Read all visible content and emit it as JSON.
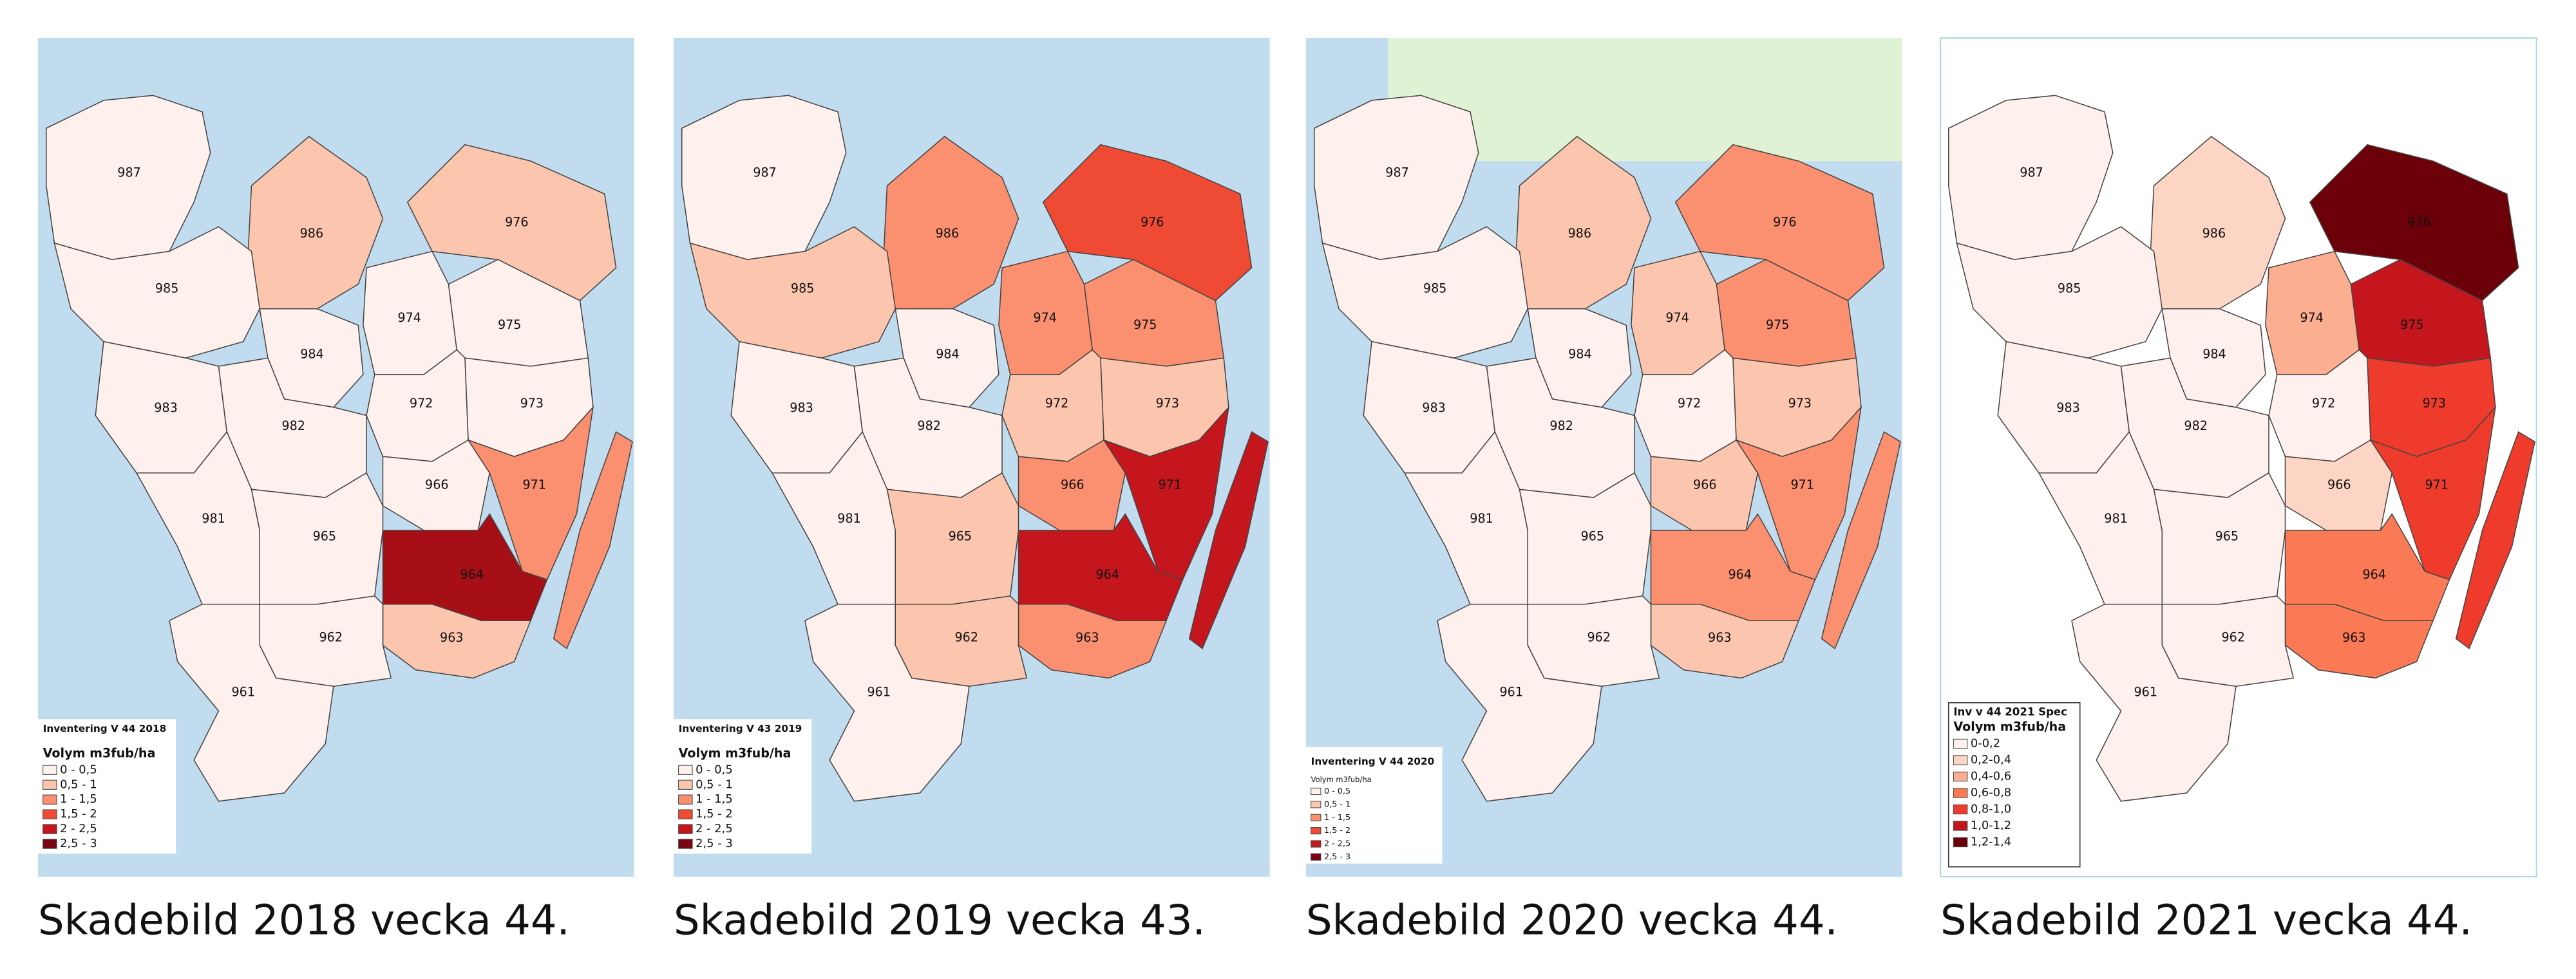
{
  "panels": [
    {
      "caption": "Skadebild 2018 vecka 44.",
      "legend": {
        "title": "Inventering V 44 2018",
        "subtitle": "Volym m3fub/ha",
        "entries": [
          {
            "label": "0 - 0,5",
            "color": "#fef0ec"
          },
          {
            "label": "0,5 - 1",
            "color": "#fcc5ae"
          },
          {
            "label": "1 - 1,5",
            "color": "#fb9070"
          },
          {
            "label": "1,5 - 2",
            "color": "#ef4b34"
          },
          {
            "label": "2 - 2,5",
            "color": "#c4161c"
          },
          {
            "label": "2,5 - 3",
            "color": "#7a0510"
          }
        ]
      },
      "island_color": "#fb9070",
      "regions": [
        {
          "label": "987",
          "color": "#fef0ec"
        },
        {
          "label": "986",
          "color": "#fcc5ae"
        },
        {
          "label": "976",
          "color": "#fcc5ae"
        },
        {
          "label": "985",
          "color": "#fef0ec"
        },
        {
          "label": "974",
          "color": "#fef0ec"
        },
        {
          "label": "975",
          "color": "#fef0ec"
        },
        {
          "label": "984",
          "color": "#fef0ec"
        },
        {
          "label": "983",
          "color": "#fef0ec"
        },
        {
          "label": "972",
          "color": "#fef0ec"
        },
        {
          "label": "973",
          "color": "#fef0ec"
        },
        {
          "label": "982",
          "color": "#fef0ec"
        },
        {
          "label": "966",
          "color": "#fef0ec"
        },
        {
          "label": "971",
          "color": "#fb9070"
        },
        {
          "label": "981",
          "color": "#fef0ec"
        },
        {
          "label": "965",
          "color": "#fef0ec"
        },
        {
          "label": "964",
          "color": "#a50f15"
        },
        {
          "label": "963",
          "color": "#fcc5ae"
        },
        {
          "label": "962",
          "color": "#fef0ec"
        },
        {
          "label": "961",
          "color": "#fef0ec"
        }
      ]
    },
    {
      "caption": "Skadebild 2019 vecka 43.",
      "legend": {
        "title": "Inventering V 43 2019",
        "subtitle": "Volym m3fub/ha",
        "entries": [
          {
            "label": "0 - 0,5",
            "color": "#fef0ec"
          },
          {
            "label": "0,5 - 1",
            "color": "#fcc5ae"
          },
          {
            "label": "1 - 1,5",
            "color": "#fb9070"
          },
          {
            "label": "1,5 - 2",
            "color": "#ef4b34"
          },
          {
            "label": "2 - 2,5",
            "color": "#c4161c"
          },
          {
            "label": "2,5 - 3",
            "color": "#7a0510"
          }
        ]
      },
      "island_color": "#c4161c",
      "regions": [
        {
          "label": "987",
          "color": "#fef0ec"
        },
        {
          "label": "986",
          "color": "#fb9070"
        },
        {
          "label": "976",
          "color": "#ef4b34"
        },
        {
          "label": "985",
          "color": "#fcc5ae"
        },
        {
          "label": "974",
          "color": "#fb9070"
        },
        {
          "label": "975",
          "color": "#fb9070"
        },
        {
          "label": "984",
          "color": "#fef0ec"
        },
        {
          "label": "983",
          "color": "#fef0ec"
        },
        {
          "label": "972",
          "color": "#fcc5ae"
        },
        {
          "label": "973",
          "color": "#fcc5ae"
        },
        {
          "label": "982",
          "color": "#fef0ec"
        },
        {
          "label": "966",
          "color": "#fb9070"
        },
        {
          "label": "971",
          "color": "#c4161c"
        },
        {
          "label": "981",
          "color": "#fef0ec"
        },
        {
          "label": "965",
          "color": "#fcc5ae"
        },
        {
          "label": "964",
          "color": "#c4161c"
        },
        {
          "label": "963",
          "color": "#fb9070"
        },
        {
          "label": "962",
          "color": "#fcc5ae"
        },
        {
          "label": "961",
          "color": "#fef0ec"
        }
      ]
    },
    {
      "caption": "Skadebild 2020 vecka 44.",
      "legend": {
        "title": "Inventering V 44 2020",
        "subtitle": "Volym m3fub/ha",
        "entries": [
          {
            "label": "0 - 0,5",
            "color": "#fef0ec"
          },
          {
            "label": "0,5 - 1",
            "color": "#fcc5ae"
          },
          {
            "label": "1 - 1,5",
            "color": "#fb9070"
          },
          {
            "label": "1,5 - 2",
            "color": "#ef4b34"
          },
          {
            "label": "2 - 2,5",
            "color": "#c4161c"
          },
          {
            "label": "2,5 - 3",
            "color": "#7a0510"
          }
        ]
      },
      "island_color": "#fb9070",
      "regions": [
        {
          "label": "987",
          "color": "#fef0ec"
        },
        {
          "label": "986",
          "color": "#fcc5ae"
        },
        {
          "label": "976",
          "color": "#fb9070"
        },
        {
          "label": "985",
          "color": "#fef0ec"
        },
        {
          "label": "974",
          "color": "#fcc5ae"
        },
        {
          "label": "975",
          "color": "#fb9070"
        },
        {
          "label": "984",
          "color": "#fef0ec"
        },
        {
          "label": "983",
          "color": "#fef0ec"
        },
        {
          "label": "972",
          "color": "#fef0ec"
        },
        {
          "label": "973",
          "color": "#fcc5ae"
        },
        {
          "label": "982",
          "color": "#fef0ec"
        },
        {
          "label": "966",
          "color": "#fcc5ae"
        },
        {
          "label": "971",
          "color": "#fb9070"
        },
        {
          "label": "981",
          "color": "#fef0ec"
        },
        {
          "label": "965",
          "color": "#fef0ec"
        },
        {
          "label": "964",
          "color": "#fb9070"
        },
        {
          "label": "963",
          "color": "#fcc5ae"
        },
        {
          "label": "962",
          "color": "#fef0ec"
        },
        {
          "label": "961",
          "color": "#fef0ec"
        }
      ]
    },
    {
      "caption": "Skadebild 2021 vecka 44.",
      "legend": {
        "title": "Inv v 44 2021 Spec",
        "subtitle": "Volym m3fub/ha",
        "entries": [
          {
            "label": "0-0,2",
            "color": "#fef0ec"
          },
          {
            "label": "0,2-0,4",
            "color": "#fdd5c4"
          },
          {
            "label": "0,4-0,6",
            "color": "#fcae91"
          },
          {
            "label": "0,6-0,8",
            "color": "#fb7a56"
          },
          {
            "label": "0,8-1,0",
            "color": "#ef3b2c"
          },
          {
            "label": "1,0-1,2",
            "color": "#c4161c"
          },
          {
            "label": "1,2-1,4",
            "color": "#6b0008"
          }
        ]
      },
      "island_color": "#ef3b2c",
      "regions": [
        {
          "label": "987",
          "color": "#fef0ec"
        },
        {
          "label": "986",
          "color": "#fdd5c4"
        },
        {
          "label": "976",
          "color": "#6b0008"
        },
        {
          "label": "985",
          "color": "#fef0ec"
        },
        {
          "label": "974",
          "color": "#fcae91"
        },
        {
          "label": "975",
          "color": "#c4161c"
        },
        {
          "label": "984",
          "color": "#fef0ec"
        },
        {
          "label": "983",
          "color": "#fef0ec"
        },
        {
          "label": "972",
          "color": "#fef0ec"
        },
        {
          "label": "973",
          "color": "#ef3b2c"
        },
        {
          "label": "982",
          "color": "#fef0ec"
        },
        {
          "label": "966",
          "color": "#fdd5c4"
        },
        {
          "label": "971",
          "color": "#ef3b2c"
        },
        {
          "label": "981",
          "color": "#fef0ec"
        },
        {
          "label": "965",
          "color": "#fef0ec"
        },
        {
          "label": "964",
          "color": "#fb7a56"
        },
        {
          "label": "963",
          "color": "#fb7a56"
        },
        {
          "label": "962",
          "color": "#fef0ec"
        },
        {
          "label": "961",
          "color": "#fef0ec"
        }
      ]
    }
  ]
}
